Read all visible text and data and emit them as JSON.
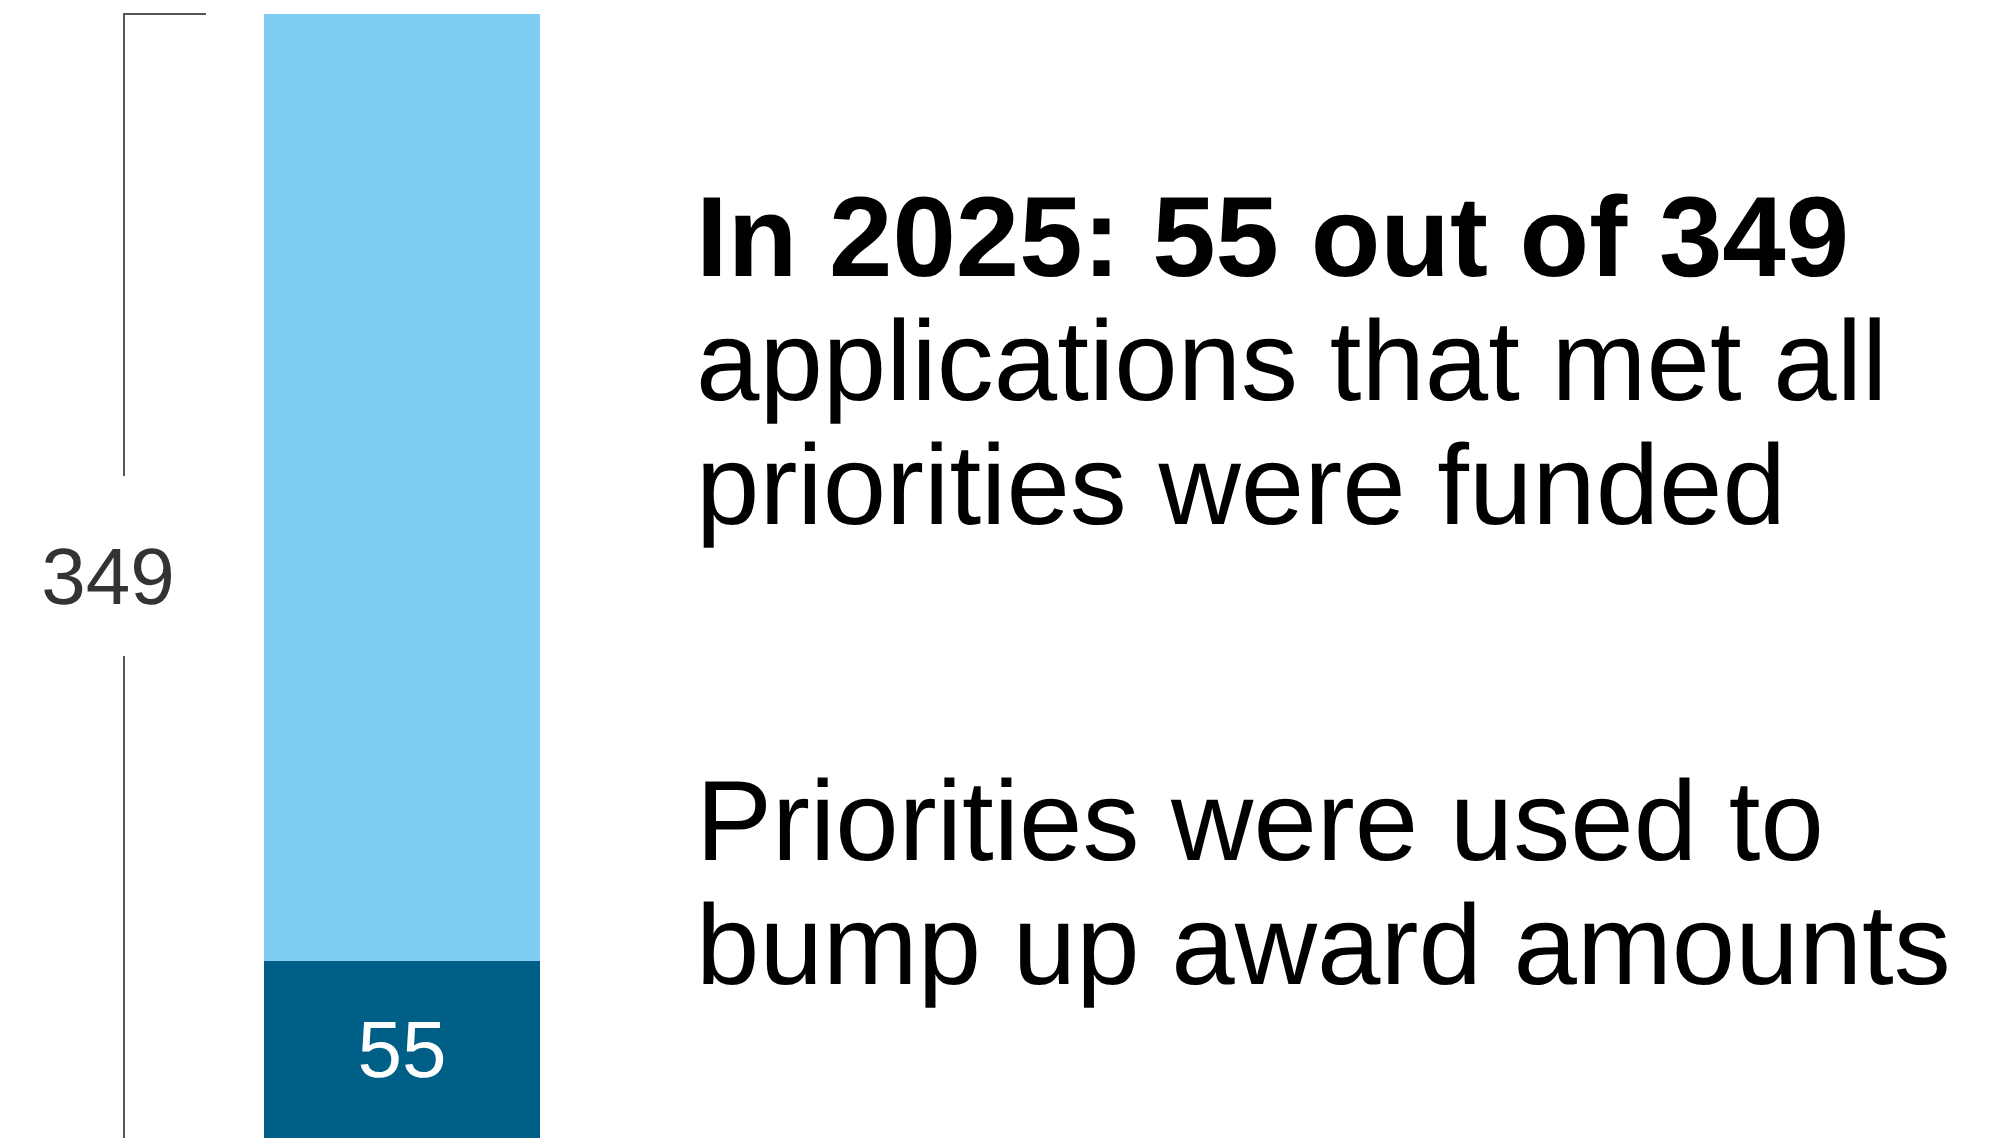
{
  "chart_data": {
    "type": "bar",
    "stacked": true,
    "categories": [
      null
    ],
    "series": [
      {
        "color": "#005f87",
        "values": [
          55
        ],
        "value_labels": [
          "55"
        ]
      },
      {
        "color": "#7fcdf2",
        "values": [
          294
        ],
        "value_labels": [
          null
        ]
      }
    ],
    "totals": [
      "349"
    ],
    "title": "In 2025: 55 out of 349",
    "subtitle": "applications that met all priorities were funded",
    "annotations": [
      "Priorities were used to bump up award amounts"
    ]
  }
}
